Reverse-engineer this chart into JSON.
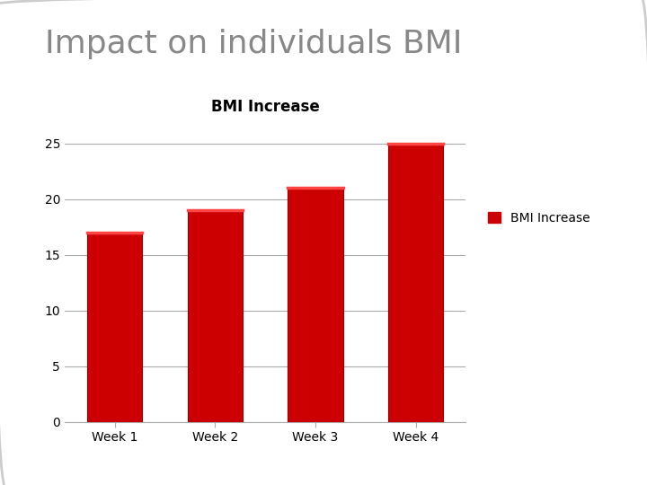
{
  "title": "Impact on individuals BMI",
  "chart_title": "BMI Increase",
  "categories": [
    "Week 1",
    "Week 2",
    "Week 3",
    "Week 4"
  ],
  "values": [
    17,
    19,
    21,
    25
  ],
  "bar_color": "#CC0000",
  "bar_edge_color": "#990000",
  "bar_highlight_color": "#ff4444",
  "legend_label": "BMI Increase",
  "legend_color": "#CC0000",
  "ylim": [
    0,
    27
  ],
  "yticks": [
    0,
    5,
    10,
    15,
    20,
    25
  ],
  "background_color": "#ffffff",
  "title_color": "#888888",
  "title_fontsize": 26,
  "chart_title_fontsize": 12,
  "tick_fontsize": 10,
  "grid_color": "#aaaaaa",
  "axis_color": "#aaaaaa",
  "border_color": "#cccccc"
}
